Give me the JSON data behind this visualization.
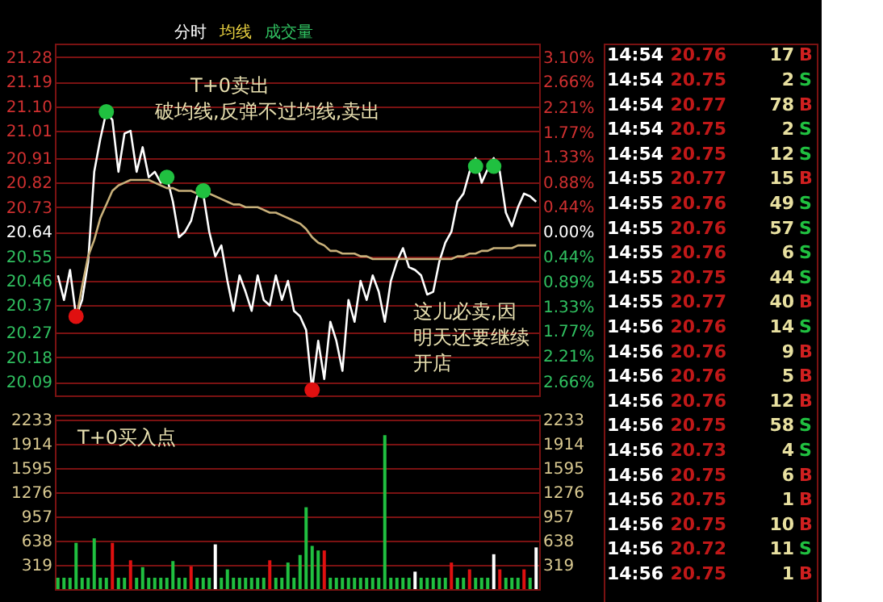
{
  "chart_data": [
    {
      "type": "line",
      "annotations": [
        "分时",
        "均线",
        "成交量",
        "T+0卖出",
        "破均线,反弹不过均线,卖出",
        "这儿必卖,因明天还要继续开店"
      ],
      "categories": [
        null,
        null,
        null,
        null,
        null,
        null,
        null,
        null,
        null,
        null,
        null,
        null,
        null,
        null,
        null,
        null,
        null,
        null,
        null,
        null,
        null,
        null,
        null,
        null,
        null,
        null,
        null,
        null,
        null,
        null,
        null,
        null,
        null,
        null,
        null,
        null,
        null,
        null,
        null,
        null,
        null,
        null,
        null,
        null,
        null,
        null,
        null,
        null,
        null,
        null,
        null,
        null,
        null,
        null,
        null,
        null,
        null,
        null,
        null,
        null,
        null,
        null,
        null,
        null,
        null,
        null,
        null,
        null,
        null,
        null,
        null,
        null,
        null,
        null,
        null,
        null,
        null,
        null,
        null,
        null
      ],
      "ylim": [
        20.04,
        21.33
      ],
      "yticks": [
        {
          "value": 21.28,
          "label": "21.28"
        },
        {
          "value": 21.19,
          "label": "21.19"
        },
        {
          "value": 21.1,
          "label": "21.10"
        },
        {
          "value": 21.01,
          "label": "21.01"
        },
        {
          "value": 20.91,
          "label": "20.91"
        },
        {
          "value": 20.82,
          "label": "20.82"
        },
        {
          "value": 20.73,
          "label": "20.73"
        },
        {
          "value": 20.64,
          "label": "20.64"
        },
        {
          "value": 20.55,
          "label": "20.55"
        },
        {
          "value": 20.46,
          "label": "20.46"
        },
        {
          "value": 20.37,
          "label": "20.37"
        },
        {
          "value": 20.27,
          "label": "20.27"
        },
        {
          "value": 20.18,
          "label": "20.18"
        },
        {
          "value": 20.09,
          "label": "20.09"
        }
      ],
      "y2lim": [
        -2.91,
        3.34
      ],
      "y2ticks": [
        {
          "value": 3.1,
          "label": "3.10%"
        },
        {
          "value": 2.66,
          "label": "2.66%"
        },
        {
          "value": 2.21,
          "label": "2.21%"
        },
        {
          "value": 1.77,
          "label": "1.77%"
        },
        {
          "value": 1.33,
          "label": "1.33%"
        },
        {
          "value": 0.88,
          "label": "0.88%"
        },
        {
          "value": 0.44,
          "label": "0.44%"
        },
        {
          "value": 0,
          "label": "0.00%"
        },
        {
          "value": -0.44,
          "label": "0.44%"
        },
        {
          "value": -0.89,
          "label": "0.89%"
        },
        {
          "value": -1.33,
          "label": "1.33%"
        },
        {
          "value": -1.77,
          "label": "1.77%"
        },
        {
          "value": -2.21,
          "label": "2.21%"
        },
        {
          "value": -2.66,
          "label": "2.66%"
        }
      ],
      "grid": "y",
      "series": [
        {
          "type": "line",
          "color": "#ffffff",
          "values": [
            20.48,
            20.39,
            20.5,
            20.33,
            20.39,
            20.53,
            20.86,
            20.98,
            21.08,
            21.05,
            20.86,
            21.0,
            21.01,
            20.86,
            20.95,
            20.84,
            20.86,
            20.82,
            20.84,
            20.75,
            20.62,
            20.64,
            20.68,
            20.77,
            20.78,
            20.64,
            20.55,
            20.59,
            20.46,
            20.35,
            20.48,
            20.42,
            20.35,
            20.48,
            20.39,
            20.37,
            20.48,
            20.39,
            20.46,
            20.35,
            20.33,
            20.28,
            20.06,
            20.24,
            20.1,
            20.31,
            20.24,
            20.13,
            20.39,
            20.31,
            20.46,
            20.39,
            20.48,
            20.42,
            20.31,
            20.46,
            20.53,
            20.58,
            20.51,
            20.5,
            20.48,
            20.41,
            20.42,
            20.53,
            20.6,
            20.64,
            20.75,
            20.78,
            20.86,
            20.91,
            20.82,
            20.87,
            20.91,
            20.86,
            20.71,
            20.66,
            20.73,
            20.78,
            20.77,
            20.75
          ]
        },
        {
          "type": "line",
          "color": "#c8b07a",
          "values": [
            null,
            null,
            null,
            20.32,
            20.44,
            20.55,
            20.61,
            20.69,
            20.74,
            20.79,
            20.81,
            20.82,
            20.83,
            20.83,
            20.83,
            20.83,
            20.82,
            20.81,
            20.8,
            20.8,
            20.79,
            20.79,
            20.79,
            20.78,
            20.78,
            20.78,
            20.77,
            20.76,
            20.75,
            20.74,
            20.74,
            20.73,
            20.73,
            20.73,
            20.72,
            20.71,
            20.71,
            20.7,
            20.69,
            20.68,
            20.67,
            20.65,
            20.62,
            20.6,
            20.59,
            20.57,
            20.57,
            20.56,
            20.56,
            20.56,
            20.55,
            20.55,
            20.54,
            20.54,
            20.54,
            20.54,
            20.54,
            20.54,
            20.54,
            20.54,
            20.54,
            20.54,
            20.54,
            20.54,
            20.54,
            20.54,
            20.55,
            20.55,
            20.56,
            20.56,
            20.57,
            20.57,
            20.58,
            20.58,
            20.58,
            20.58,
            20.59,
            20.59,
            20.59,
            20.59
          ]
        },
        {
          "type": "scatter",
          "color": "#e01010",
          "marker": "circle",
          "values": [
            null,
            null,
            null,
            20.33,
            null,
            null,
            null,
            null,
            null,
            null,
            null,
            null,
            null,
            null,
            null,
            null,
            null,
            null,
            null,
            null,
            null,
            null,
            null,
            null,
            null,
            null,
            null,
            null,
            null,
            null,
            null,
            null,
            null,
            null,
            null,
            null,
            null,
            null,
            null,
            null,
            null,
            null,
            20.06,
            null,
            null,
            null,
            null,
            null,
            null,
            null,
            null,
            null,
            null,
            null,
            null,
            null,
            null,
            null,
            null,
            null,
            null,
            null,
            null,
            null,
            null,
            null,
            null,
            null,
            null,
            null,
            null,
            null,
            null,
            null,
            null,
            null,
            null,
            null,
            null,
            null
          ]
        },
        {
          "type": "scatter",
          "color": "#20c040",
          "marker": "circle",
          "values": [
            null,
            null,
            null,
            null,
            null,
            null,
            null,
            null,
            21.08,
            null,
            null,
            null,
            null,
            null,
            null,
            null,
            null,
            null,
            20.84,
            null,
            null,
            null,
            null,
            null,
            20.79,
            null,
            null,
            null,
            null,
            null,
            null,
            null,
            null,
            null,
            null,
            null,
            null,
            null,
            null,
            null,
            null,
            null,
            null,
            null,
            null,
            null,
            null,
            null,
            null,
            null,
            null,
            null,
            null,
            null,
            null,
            null,
            null,
            null,
            null,
            null,
            null,
            null,
            null,
            null,
            null,
            null,
            null,
            null,
            null,
            20.88,
            null,
            null,
            20.88,
            null,
            null,
            null,
            null,
            null,
            null,
            null
          ]
        }
      ]
    },
    {
      "type": "bar",
      "annotations": [
        "T+0买入点"
      ],
      "categories": [
        null,
        null,
        null,
        null,
        null,
        null,
        null,
        null,
        null,
        null,
        null,
        null,
        null,
        null,
        null,
        null,
        null,
        null,
        null,
        null,
        null,
        null,
        null,
        null,
        null,
        null,
        null,
        null,
        null,
        null,
        null,
        null,
        null,
        null,
        null,
        null,
        null,
        null,
        null,
        null,
        null,
        null,
        null,
        null,
        null,
        null,
        null,
        null,
        null,
        null,
        null,
        null,
        null,
        null,
        null,
        null,
        null,
        null,
        null,
        null,
        null,
        null,
        null,
        null,
        null,
        null,
        null,
        null,
        null,
        null,
        null,
        null,
        null,
        null,
        null,
        null,
        null,
        null,
        null,
        null
      ],
      "ylim": [
        0,
        2300
      ],
      "yticks": [
        319,
        638,
        957,
        1276,
        1595,
        1914,
        2233
      ],
      "y2lim": [
        0,
        2300
      ],
      "y2ticks": [
        319,
        638,
        957,
        1276,
        1595,
        1914,
        2233
      ],
      "grid": "y",
      "series": [
        {
          "values": [
            150,
            150,
            150,
            610,
            150,
            150,
            670,
            150,
            150,
            610,
            150,
            150,
            380,
            150,
            290,
            150,
            150,
            150,
            150,
            370,
            150,
            150,
            300,
            150,
            150,
            150,
            590,
            150,
            260,
            150,
            150,
            150,
            150,
            150,
            150,
            380,
            150,
            150,
            350,
            150,
            450,
            1080,
            570,
            510,
            510,
            150,
            150,
            150,
            150,
            150,
            150,
            150,
            150,
            150,
            2030,
            150,
            150,
            150,
            150,
            230,
            150,
            150,
            150,
            150,
            150,
            350,
            150,
            150,
            260,
            150,
            150,
            150,
            460,
            260,
            150,
            150,
            150,
            260,
            150,
            550
          ],
          "colors": [
            "#20c040",
            "#20c040",
            "#20c040",
            "#20c040",
            "#20c040",
            "#20c040",
            "#20c040",
            "#20c040",
            "#20c040",
            "#e01010",
            "#20c040",
            "#20c040",
            "#e01010",
            "#20c040",
            "#20c040",
            "#20c040",
            "#20c040",
            "#20c040",
            "#20c040",
            "#20c040",
            "#20c040",
            "#20c040",
            "#e01010",
            "#20c040",
            "#20c040",
            "#20c040",
            "#ffffff",
            "#20c040",
            "#20c040",
            "#20c040",
            "#20c040",
            "#20c040",
            "#20c040",
            "#20c040",
            "#20c040",
            "#e01010",
            "#20c040",
            "#20c040",
            "#20c040",
            "#20c040",
            "#20c040",
            "#20c040",
            "#20c040",
            "#20c040",
            "#e01010",
            "#20c040",
            "#20c040",
            "#20c040",
            "#20c040",
            "#20c040",
            "#20c040",
            "#20c040",
            "#20c040",
            "#20c040",
            "#20c040",
            "#20c040",
            "#20c040",
            "#20c040",
            "#20c040",
            "#ffffff",
            "#20c040",
            "#20c040",
            "#20c040",
            "#20c040",
            "#20c040",
            "#e01010",
            "#20c040",
            "#20c040",
            "#e01010",
            "#20c040",
            "#20c040",
            "#20c040",
            "#ffffff",
            "#e01010",
            "#20c040",
            "#20c040",
            "#20c040",
            "#e01010",
            "#20c040",
            "#ffffff"
          ]
        }
      ]
    },
    {
      "type": "other",
      "annotations": [
        "14:54",
        "20.76",
        "17",
        "B",
        "14:54",
        "20.75",
        "2",
        "S",
        "14:54",
        "20.77",
        "78",
        "B",
        "14:54",
        "20.75",
        "2",
        "S",
        "14:54",
        "20.75",
        "12",
        "S",
        "14:55",
        "20.77",
        "15",
        "B",
        "14:55",
        "20.76",
        "49",
        "S",
        "14:55",
        "20.76",
        "57",
        "S",
        "14:55",
        "20.76",
        "6",
        "S",
        "14:55",
        "20.75",
        "44",
        "S",
        "14:55",
        "20.77",
        "40",
        "B",
        "14:56",
        "20.76",
        "14",
        "S",
        "14:56",
        "20.76",
        "9",
        "B",
        "14:56",
        "20.76",
        "5",
        "B",
        "14:56",
        "20.76",
        "12",
        "B",
        "14:56",
        "20.75",
        "58",
        "S",
        "14:56",
        "20.73",
        "4",
        "S",
        "14:56",
        "20.75",
        "6",
        "B",
        "14:56",
        "20.75",
        "1",
        "B",
        "14:56",
        "20.75",
        "10",
        "B",
        "14:56",
        "20.72",
        "11",
        "S",
        "14:56",
        "20.75",
        "1",
        "B"
      ],
      "colors": [
        "#d02020",
        "#20c040",
        "#d02020",
        "#20c040",
        "#20c040",
        "#d02020",
        "#20c040",
        "#20c040",
        "#20c040",
        "#20c040",
        "#d02020",
        "#20c040",
        "#d02020",
        "#d02020",
        "#d02020",
        "#20c040",
        "#20c040",
        "#d02020",
        "#d02020",
        "#d02020",
        "#20c040",
        "#d02020"
      ]
    }
  ]
}
